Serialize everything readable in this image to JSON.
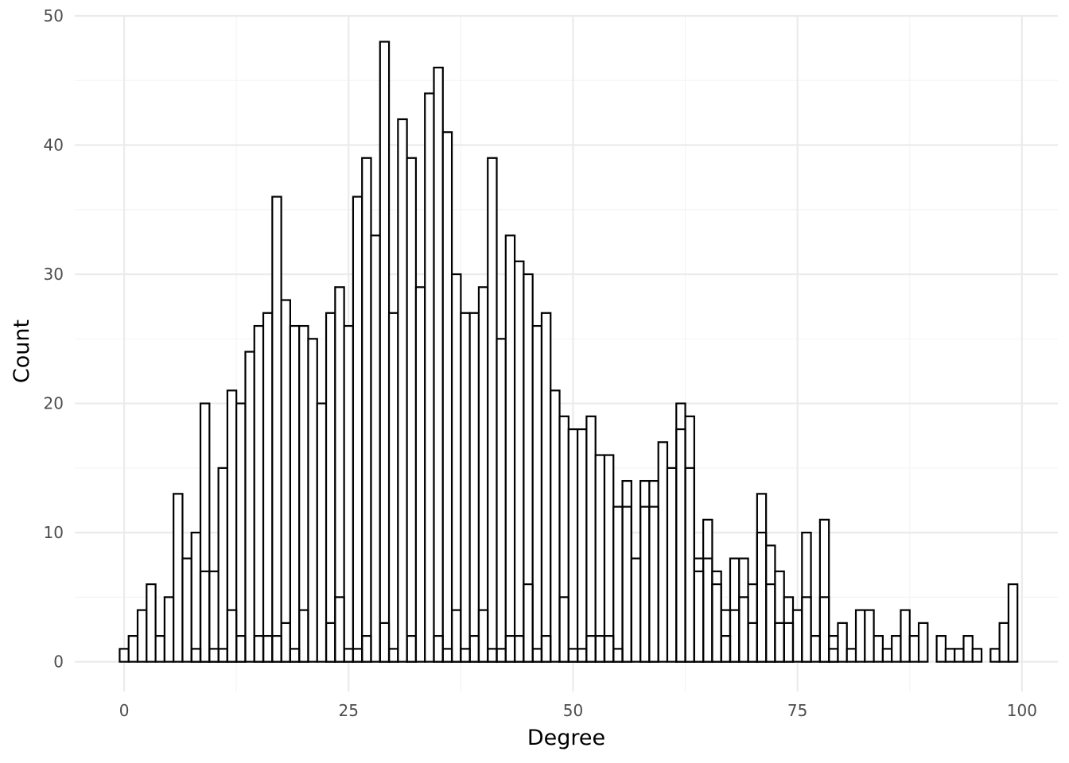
{
  "chart_data": {
    "type": "bar",
    "subtype": "histogram",
    "xlabel": "Degree",
    "ylabel": "Count",
    "xlim": [
      -5.5,
      104
    ],
    "ylim": [
      -2.3,
      50
    ],
    "x_ticks": [
      0,
      25,
      50,
      75,
      100
    ],
    "y_ticks": [
      0,
      10,
      20,
      30,
      40,
      50
    ],
    "grid": true,
    "bin_width": 1,
    "colors": {
      "bar_fill": "#ffffff",
      "bar_stroke": "#000000",
      "grid_major": "#ebebeb",
      "grid_minor": "#f4f4f4"
    },
    "series": [
      {
        "x": [
          0,
          1,
          2,
          3,
          4,
          5,
          6,
          7,
          8,
          9,
          10,
          11,
          12,
          13,
          14,
          15,
          16,
          17,
          18,
          19,
          20,
          21,
          22,
          23,
          24,
          25,
          26,
          27,
          28,
          29,
          30,
          31,
          32,
          33,
          34,
          35,
          36,
          37,
          38,
          39,
          40,
          41,
          42,
          43,
          44,
          45,
          46,
          47,
          48,
          49,
          50,
          51,
          52,
          53,
          54,
          55,
          56,
          57,
          58,
          59,
          60,
          61,
          62,
          63,
          64,
          65,
          66,
          67,
          68,
          69,
          70,
          71,
          72,
          73,
          74,
          75,
          76,
          77,
          78,
          79,
          80,
          81,
          82,
          83,
          84,
          85,
          86,
          87,
          88,
          89,
          90,
          91,
          92,
          93,
          94,
          95,
          96,
          97,
          98,
          99
        ],
        "values": [
          1,
          2,
          4,
          6,
          2,
          5,
          13,
          8,
          10,
          20,
          7,
          15,
          21,
          20,
          24,
          26,
          27,
          36,
          28,
          26,
          26,
          25,
          20,
          27,
          29,
          26,
          36,
          39,
          33,
          48,
          27,
          42,
          39,
          29,
          44,
          46,
          41,
          30,
          27,
          27,
          29,
          39,
          25,
          33,
          31,
          30,
          26,
          27,
          21,
          19,
          18,
          18,
          19,
          16,
          16,
          12,
          14,
          8,
          14,
          14,
          17,
          15,
          20,
          19,
          8,
          11,
          7,
          4,
          8,
          8,
          6,
          13,
          9,
          7,
          5,
          4,
          10,
          2,
          11,
          2,
          3,
          1,
          4,
          4,
          2,
          1,
          2,
          4,
          2,
          3,
          0,
          2,
          1,
          1,
          2,
          1,
          0,
          1,
          3,
          6
        ]
      },
      {
        "x": [
          0,
          1,
          2,
          3,
          4,
          5,
          6,
          7,
          8,
          9,
          10,
          11,
          12,
          13,
          14,
          15,
          16,
          17,
          18,
          19,
          20,
          21,
          22,
          23,
          24,
          25,
          26,
          27,
          28,
          29,
          30,
          31,
          32,
          33,
          34,
          35,
          36,
          37,
          38,
          39,
          40,
          41,
          42,
          43,
          44,
          45,
          46,
          47,
          48,
          49,
          50,
          51,
          52,
          53,
          54,
          55,
          56,
          57,
          58,
          59,
          60,
          61,
          62,
          63,
          64,
          65,
          66,
          67,
          68,
          69,
          70,
          71,
          72,
          73,
          74,
          75,
          76,
          77,
          78,
          79,
          80,
          81,
          82,
          83,
          84,
          85,
          86,
          87,
          88,
          89,
          90,
          91,
          92,
          93,
          94,
          95,
          96,
          97,
          98,
          99
        ],
        "values": [
          0,
          0,
          0,
          0,
          0,
          0,
          0,
          0,
          1,
          7,
          1,
          1,
          4,
          2,
          0,
          2,
          2,
          2,
          3,
          1,
          4,
          0,
          0,
          3,
          5,
          1,
          1,
          2,
          0,
          3,
          1,
          0,
          2,
          0,
          0,
          2,
          1,
          4,
          1,
          2,
          4,
          1,
          1,
          2,
          2,
          6,
          1,
          2,
          0,
          5,
          1,
          1,
          2,
          2,
          2,
          1,
          12,
          0,
          12,
          12,
          0,
          0,
          18,
          15,
          7,
          8,
          6,
          2,
          4,
          5,
          3,
          10,
          6,
          3,
          3,
          0,
          5,
          0,
          5,
          1,
          0,
          0,
          0,
          0,
          0,
          0,
          0,
          0,
          0,
          0,
          0,
          0,
          0,
          0,
          0,
          0,
          0,
          0,
          0,
          0
        ]
      }
    ]
  }
}
